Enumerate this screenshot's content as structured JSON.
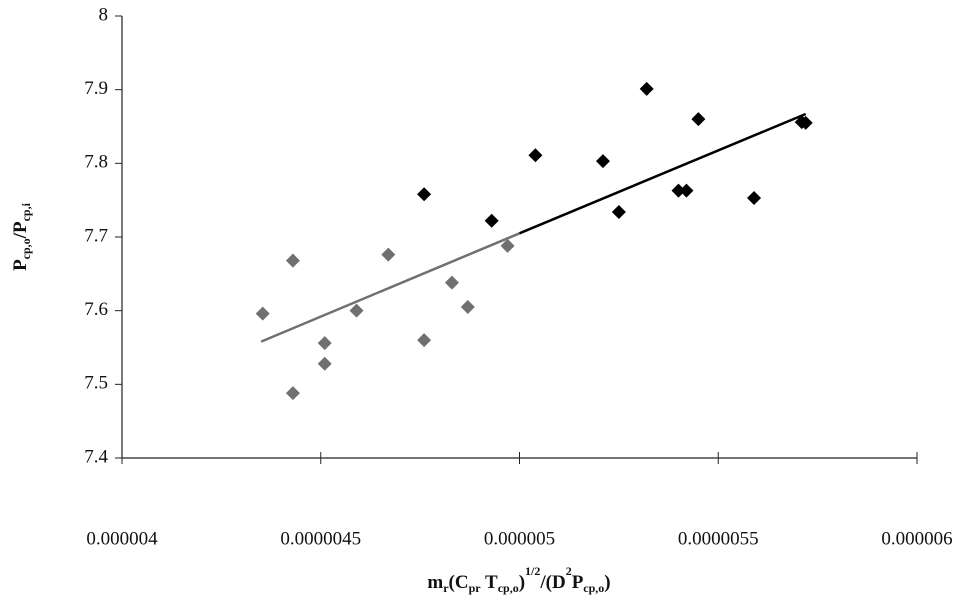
{
  "chart_data": {
    "type": "scatter",
    "xlim": [
      4e-06,
      6e-06
    ],
    "xticks": [
      4e-06,
      4.5e-06,
      5e-06,
      5.5e-06,
      6e-06
    ],
    "ylim": [
      7.4,
      8
    ],
    "yticks": [
      7.4,
      7.5,
      7.6,
      7.7,
      7.8,
      7.9,
      8
    ],
    "x_label": [
      "m",
      "r",
      "(C",
      "pr",
      " T",
      "cp,o",
      ")",
      "1/2",
      "/(D",
      "2",
      "P",
      "cp,o",
      ")"
    ],
    "y_label": [
      "P",
      "cp,o",
      "/P",
      "cp,i"
    ],
    "series": [
      {
        "color": "#707070",
        "x": [
          4.354e-06,
          4.43e-06,
          4.43e-06,
          4.51e-06,
          4.51e-06,
          4.59e-06,
          4.67e-06,
          4.76e-06,
          4.83e-06,
          4.87e-06,
          4.97e-06
        ],
        "values": [
          7.596,
          7.668,
          7.488,
          7.556,
          7.528,
          7.6,
          7.676,
          7.56,
          7.638,
          7.605,
          7.688
        ]
      },
      {
        "color": "#000000",
        "x": [
          4.76e-06,
          4.93e-06,
          5.04e-06,
          5.21e-06,
          5.25e-06,
          5.32e-06,
          5.4e-06,
          5.42e-06,
          5.45e-06,
          5.59e-06,
          5.71e-06,
          5.72e-06
        ],
        "values": [
          7.758,
          7.722,
          7.811,
          7.803,
          7.734,
          7.901,
          7.763,
          7.763,
          7.86,
          7.753,
          7.856,
          7.855
        ]
      }
    ],
    "trendline": {
      "x": [
        4.35e-06,
        5e-06,
        5.72e-06
      ],
      "values": [
        7.558,
        7.705,
        7.867
      ],
      "colors": [
        "#707070",
        "#000000"
      ]
    }
  }
}
